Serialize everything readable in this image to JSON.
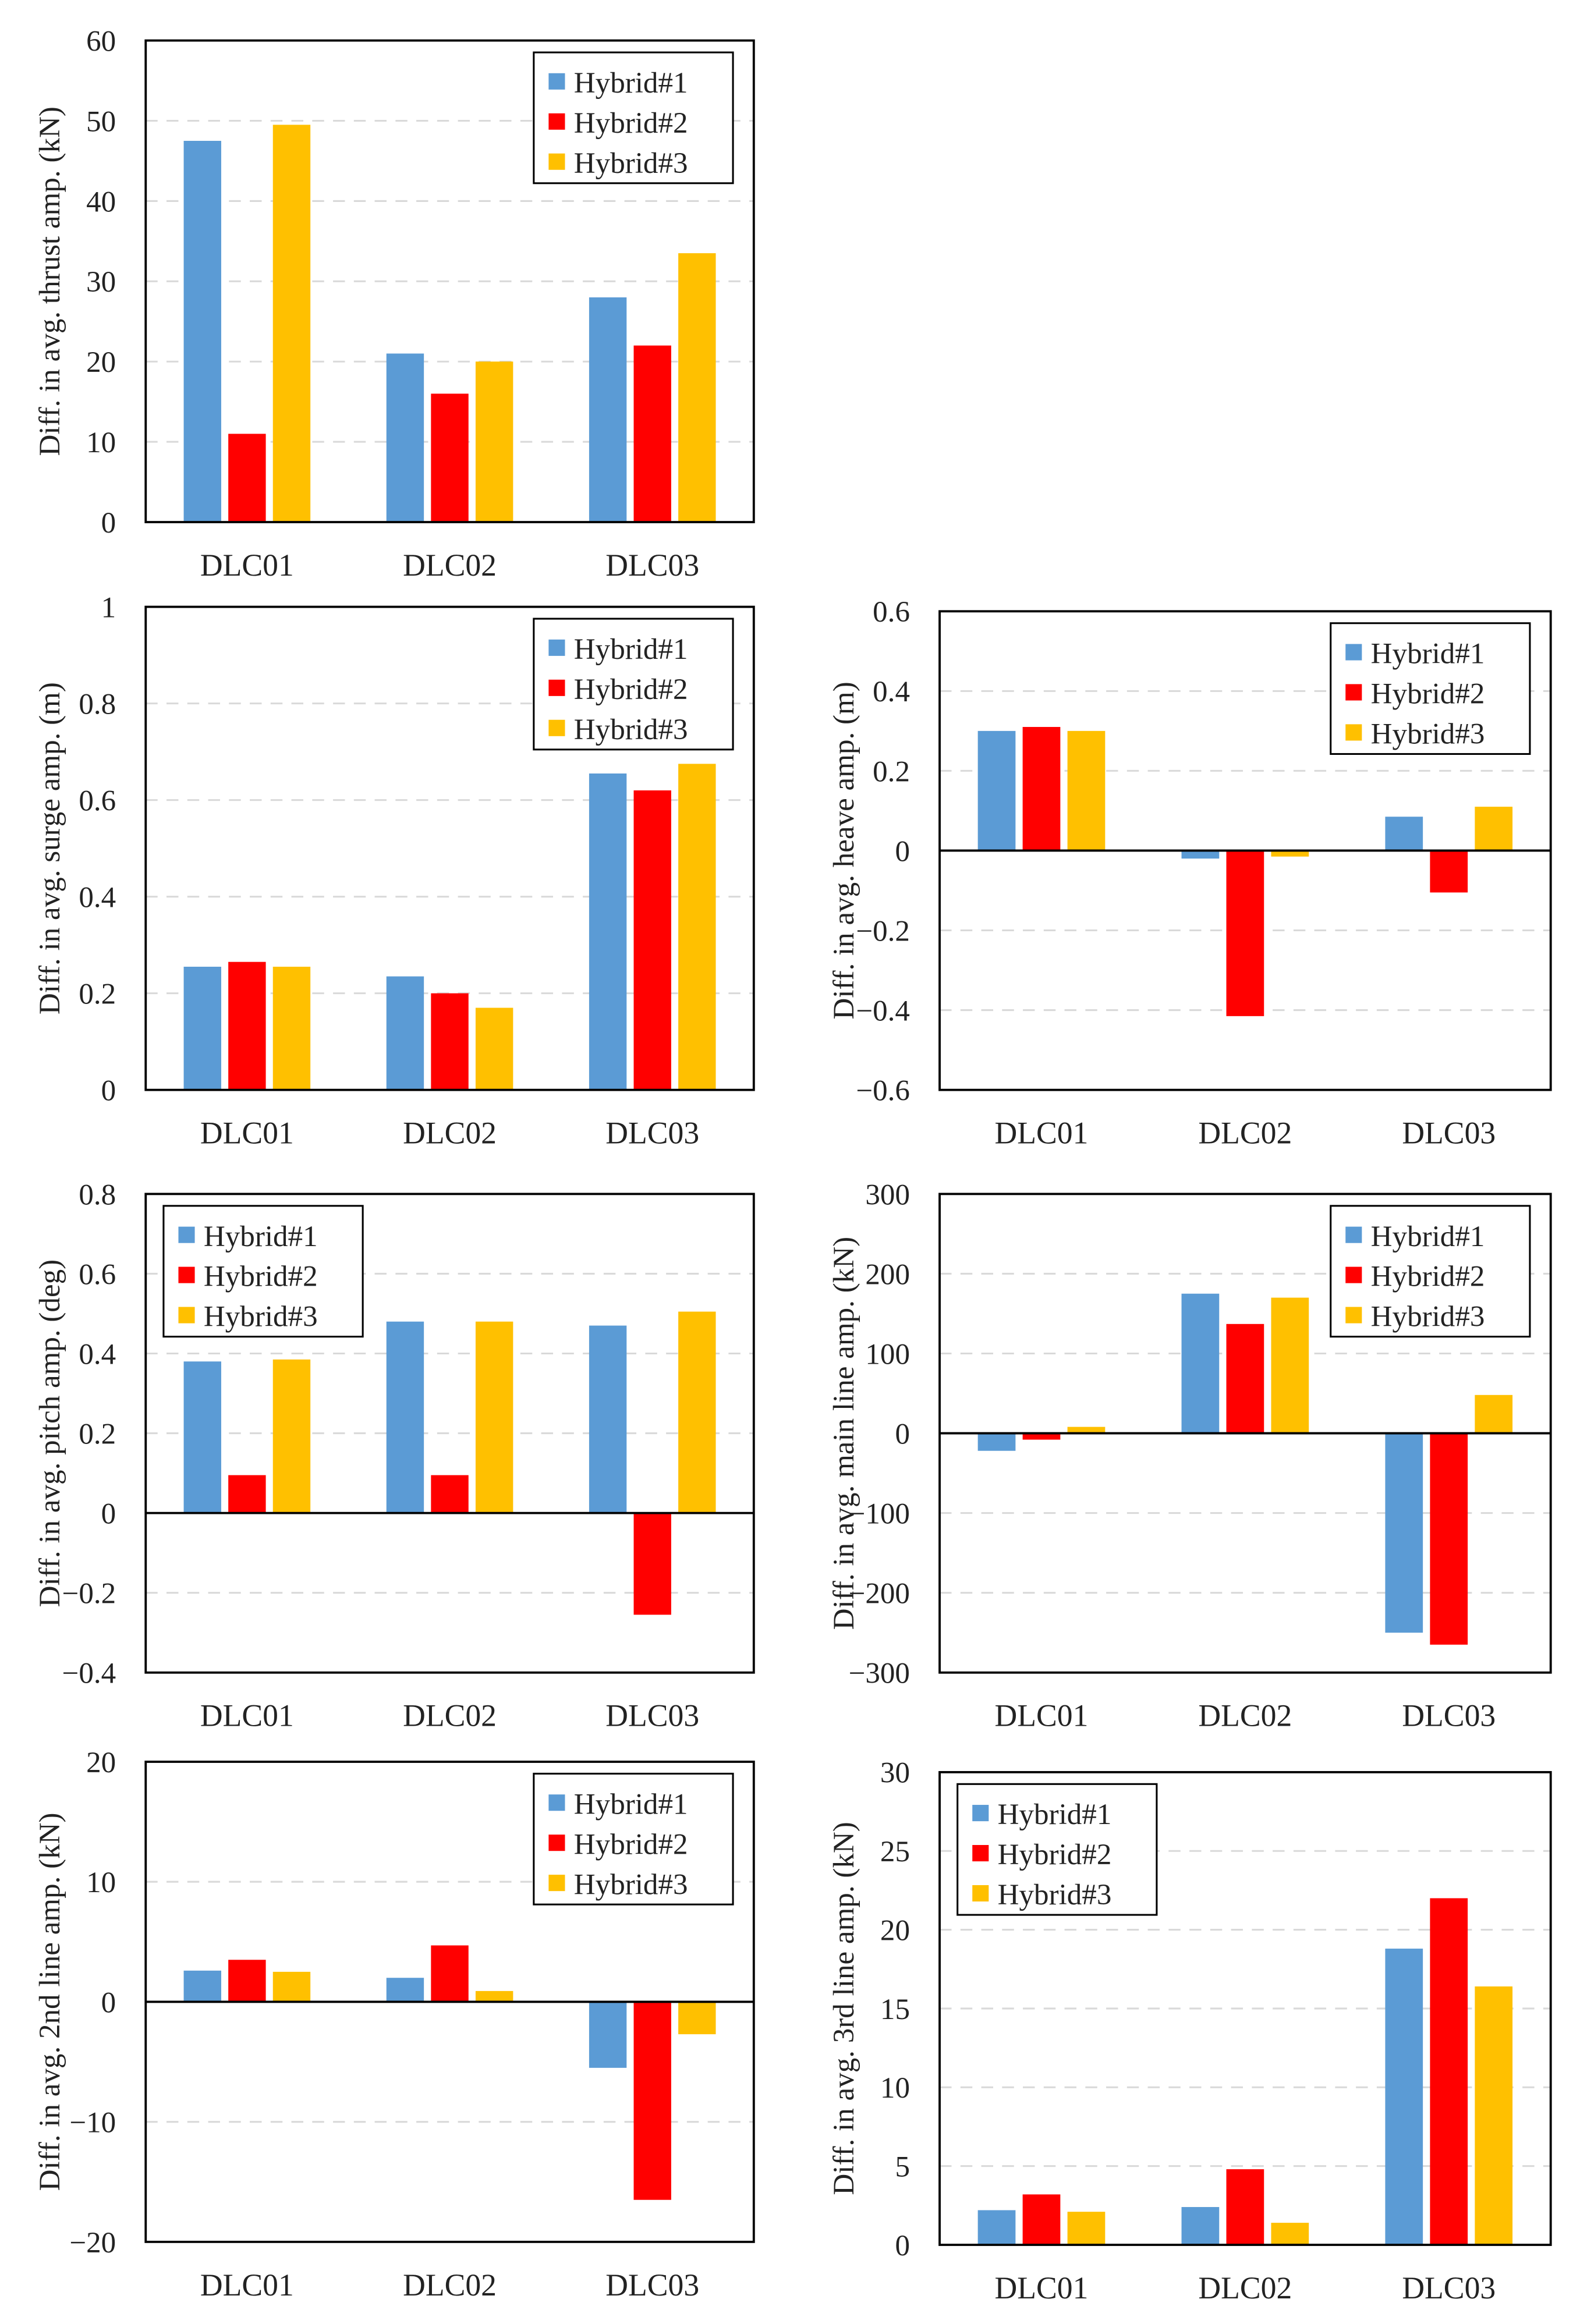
{
  "colors": {
    "Hybrid#1": "#5b9bd5",
    "Hybrid#2": "#ff0000",
    "Hybrid#3": "#ffc000"
  },
  "chart_data": [
    {
      "type": "bar",
      "title": "",
      "xlabel": "",
      "ylabel": "Diff. in avg. thrust amp. (kN)",
      "ylim": [
        0,
        60
      ],
      "yticks": [
        0,
        10,
        20,
        30,
        40,
        50,
        60
      ],
      "tick_labels": [
        "0",
        "10",
        "20",
        "30",
        "40",
        "50",
        "60"
      ],
      "categories": [
        "DLC01",
        "DLC02",
        "DLC03"
      ],
      "legend": "top-right",
      "grid": true,
      "series": [
        {
          "name": "Hybrid#1",
          "values": [
            47.5,
            21,
            28
          ]
        },
        {
          "name": "Hybrid#2",
          "values": [
            11,
            16,
            22
          ]
        },
        {
          "name": "Hybrid#3",
          "values": [
            49.5,
            20,
            33.5
          ]
        }
      ]
    },
    {
      "type": "bar",
      "title": "",
      "xlabel": "",
      "ylabel": "Diff. in avg. surge amp. (m)",
      "ylim": [
        0,
        1
      ],
      "yticks": [
        0,
        0.2,
        0.4,
        0.6,
        0.8,
        1
      ],
      "tick_labels": [
        "0",
        "0.2",
        "0.4",
        "0.6",
        "0.8",
        "1"
      ],
      "categories": [
        "DLC01",
        "DLC02",
        "DLC03"
      ],
      "legend": "top-right",
      "grid": true,
      "series": [
        {
          "name": "Hybrid#1",
          "values": [
            0.255,
            0.235,
            0.655
          ]
        },
        {
          "name": "Hybrid#2",
          "values": [
            0.265,
            0.2,
            0.62
          ]
        },
        {
          "name": "Hybrid#3",
          "values": [
            0.255,
            0.17,
            0.675
          ]
        }
      ]
    },
    {
      "type": "bar",
      "title": "",
      "xlabel": "",
      "ylabel": "Diff. in avg. heave amp. (m)",
      "ylim": [
        -0.6,
        0.6
      ],
      "yticks": [
        -0.6,
        -0.4,
        -0.2,
        0,
        0.2,
        0.4,
        0.6
      ],
      "tick_labels": [
        "−0.6",
        "−0.4",
        "−0.2",
        "0",
        "0.2",
        "0.4",
        "0.6"
      ],
      "categories": [
        "DLC01",
        "DLC02",
        "DLC03"
      ],
      "legend": "top-right",
      "grid": true,
      "series": [
        {
          "name": "Hybrid#1",
          "values": [
            0.3,
            -0.02,
            0.085
          ]
        },
        {
          "name": "Hybrid#2",
          "values": [
            0.31,
            -0.415,
            -0.105
          ]
        },
        {
          "name": "Hybrid#3",
          "values": [
            0.3,
            -0.015,
            0.11
          ]
        }
      ]
    },
    {
      "type": "bar",
      "title": "",
      "xlabel": "",
      "ylabel": "Diff. in avg. pitch amp. (deg)",
      "ylim": [
        -0.4,
        0.8
      ],
      "yticks": [
        -0.4,
        -0.2,
        0,
        0.2,
        0.4,
        0.6,
        0.8
      ],
      "tick_labels": [
        "−0.4",
        "−0.2",
        "0",
        "0.2",
        "0.4",
        "0.6",
        "0.8"
      ],
      "categories": [
        "DLC01",
        "DLC02",
        "DLC03"
      ],
      "legend": "top-left",
      "grid": true,
      "series": [
        {
          "name": "Hybrid#1",
          "values": [
            0.38,
            0.48,
            0.47
          ]
        },
        {
          "name": "Hybrid#2",
          "values": [
            0.095,
            0.095,
            -0.255
          ]
        },
        {
          "name": "Hybrid#3",
          "values": [
            0.385,
            0.48,
            0.505
          ]
        }
      ]
    },
    {
      "type": "bar",
      "title": "",
      "xlabel": "",
      "ylabel": "Diff. in avg. main line amp. (kN)",
      "ylim": [
        -300,
        300
      ],
      "yticks": [
        -300,
        -200,
        -100,
        0,
        100,
        200,
        300
      ],
      "tick_labels": [
        "−300",
        "−200",
        "−100",
        "0",
        "100",
        "200",
        "300"
      ],
      "categories": [
        "DLC01",
        "DLC02",
        "DLC03"
      ],
      "legend": "top-right",
      "grid": true,
      "series": [
        {
          "name": "Hybrid#1",
          "values": [
            -22,
            175,
            -250
          ]
        },
        {
          "name": "Hybrid#2",
          "values": [
            -8,
            137,
            -265
          ]
        },
        {
          "name": "Hybrid#3",
          "values": [
            8,
            170,
            48
          ]
        }
      ]
    },
    {
      "type": "bar",
      "title": "",
      "xlabel": "",
      "ylabel": "Diff. in avg. 2nd line amp. (kN)",
      "ylim": [
        -20,
        20
      ],
      "yticks": [
        -20,
        -10,
        0,
        10,
        20
      ],
      "tick_labels": [
        "−20",
        "−10",
        "0",
        "10",
        "20"
      ],
      "categories": [
        "DLC01",
        "DLC02",
        "DLC03"
      ],
      "legend": "top-right",
      "grid": true,
      "series": [
        {
          "name": "Hybrid#1",
          "values": [
            2.6,
            2.0,
            -5.5
          ]
        },
        {
          "name": "Hybrid#2",
          "values": [
            3.5,
            4.7,
            -16.5
          ]
        },
        {
          "name": "Hybrid#3",
          "values": [
            2.5,
            0.9,
            -2.7
          ]
        }
      ]
    },
    {
      "type": "bar",
      "title": "",
      "xlabel": "",
      "ylabel": "Diff. in avg. 3rd line amp. (kN)",
      "ylim": [
        0,
        30
      ],
      "yticks": [
        0,
        5,
        10,
        15,
        20,
        25,
        30
      ],
      "tick_labels": [
        "0",
        "5",
        "10",
        "15",
        "20",
        "25",
        "30"
      ],
      "categories": [
        "DLC01",
        "DLC02",
        "DLC03"
      ],
      "legend": "top-left",
      "grid": true,
      "series": [
        {
          "name": "Hybrid#1",
          "values": [
            2.2,
            2.4,
            18.8
          ]
        },
        {
          "name": "Hybrid#2",
          "values": [
            3.2,
            4.8,
            22
          ]
        },
        {
          "name": "Hybrid#3",
          "values": [
            2.1,
            1.4,
            16.4
          ]
        }
      ]
    }
  ]
}
